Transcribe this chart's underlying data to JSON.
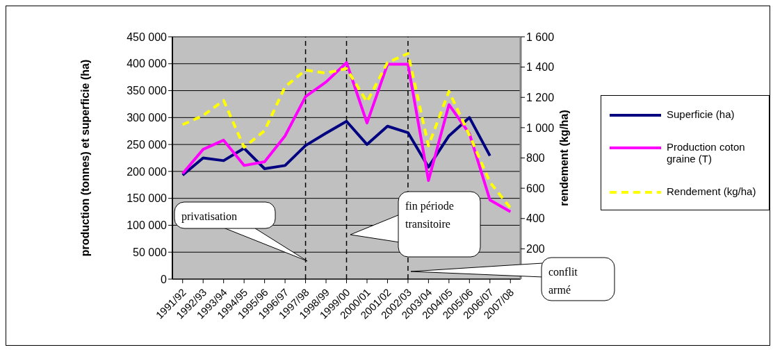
{
  "chart_data": {
    "type": "line",
    "categories": [
      "1991/92",
      "1992/93",
      "1993/94",
      "1994/95",
      "1995/96",
      "1996/97",
      "1997/98",
      "1998/99",
      "1999/00",
      "2000/01",
      "2001/02",
      "2002/03",
      "2003/04",
      "2004/05",
      "2005/06",
      "2006/07",
      "2007/08"
    ],
    "series": [
      {
        "name": "Superficie (ha)",
        "color": "#000080",
        "axis": "y",
        "line_style": "solid",
        "values": [
          193000,
          225000,
          220000,
          243000,
          205000,
          211000,
          248000,
          271000,
          293000,
          250000,
          284000,
          272000,
          208000,
          266000,
          300000,
          229000,
          null
        ]
      },
      {
        "name": "Production coton graine (T)",
        "color": "#ff00ff",
        "axis": "y",
        "line_style": "solid",
        "values": [
          196000,
          241000,
          258000,
          211000,
          218000,
          266000,
          339000,
          366000,
          402000,
          290000,
          399000,
          399000,
          183000,
          324000,
          270000,
          147000,
          125000
        ]
      },
      {
        "name": "Rendement (kg/ha)",
        "color": "#ffff00",
        "axis": "y2",
        "line_style": "dashed",
        "values": [
          1020,
          1080,
          1180,
          870,
          980,
          1270,
          1380,
          1360,
          1390,
          1170,
          1430,
          1490,
          880,
          1240,
          950,
          640,
          470
        ]
      }
    ],
    "ylabel": "production (tonnes) et superficie (ha)",
    "y2label": "rendement (kg/ha)",
    "ylim": [
      0,
      450000
    ],
    "yticks": [
      {
        "value": 0,
        "label": "0"
      },
      {
        "value": 50000,
        "label": "50 000"
      },
      {
        "value": 100000,
        "label": "100 000"
      },
      {
        "value": 150000,
        "label": "150 000"
      },
      {
        "value": 200000,
        "label": "200 000"
      },
      {
        "value": 250000,
        "label": "250 000"
      },
      {
        "value": 300000,
        "label": "300 000"
      },
      {
        "value": 350000,
        "label": "350 000"
      },
      {
        "value": 400000,
        "label": "400 000"
      },
      {
        "value": 450000,
        "label": "450 000"
      }
    ],
    "y2lim": [
      0,
      1600
    ],
    "y2ticks": [
      {
        "value": 200,
        "label": "200"
      },
      {
        "value": 400,
        "label": "400"
      },
      {
        "value": 600,
        "label": "600"
      },
      {
        "value": 800,
        "label": "800"
      },
      {
        "value": 1000,
        "label": "1 000"
      },
      {
        "value": 1200,
        "label": "1 200"
      },
      {
        "value": 1400,
        "label": "1 400"
      },
      {
        "value": 1600,
        "label": "1 600"
      }
    ],
    "ref_lines": [
      {
        "axis": "x",
        "value": "1997/98",
        "color": "#000000",
        "line_style": "dashed"
      },
      {
        "axis": "x",
        "value": "1999/00",
        "color": "#000000",
        "line_style": "dashed"
      },
      {
        "axis": "x",
        "value": "2002/03",
        "color": "#000000",
        "line_style": "dashed"
      }
    ],
    "annotations": [
      "privatisation",
      "fin période transitoire",
      "conflit armé"
    ],
    "grid": "y",
    "legend": "right",
    "marker": "none"
  }
}
